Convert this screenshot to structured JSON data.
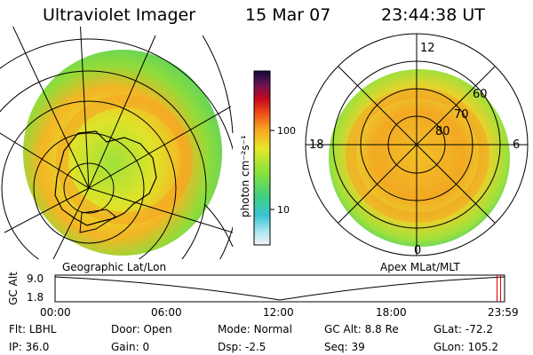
{
  "header": {
    "instrument": "Ultraviolet Imager",
    "date": "15 Mar 07",
    "time": "23:44:38 UT"
  },
  "left_panel": {
    "label": "Geographic Lat/Lon"
  },
  "right_panel": {
    "label": "Apex MLat/MLT",
    "mlt_labels": {
      "top": "12",
      "left": "18",
      "right": "6",
      "bottom": "0"
    },
    "lat_labels": [
      "60",
      "70",
      "80"
    ]
  },
  "colorbar": {
    "unit": "photon cm⁻²s⁻¹",
    "ticks": [
      "100",
      "10"
    ]
  },
  "altitude_plot": {
    "axis_title": "GC Alt",
    "y_ticks": [
      "9.0",
      "1.8"
    ],
    "x_ticks": [
      "00:00",
      "06:00",
      "12:00",
      "18:00",
      "23:59"
    ],
    "min_hour": 12,
    "current_hour": 23.74
  },
  "info": {
    "filter_label": "Flt:",
    "filter": "LBHL",
    "ip_label": "IP:",
    "ip": "36.0",
    "door_label": "Door:",
    "door": "Open",
    "gain_label": "Gain:",
    "gain": "0",
    "mode_label": "Mode:",
    "mode": "Normal",
    "dsp_label": "Dsp:",
    "dsp": "-2.5",
    "gcalt_label": "GC Alt:",
    "gcalt": "8.8 Re",
    "seq_label": "Seq:",
    "seq": "39",
    "glat_label": "GLat:",
    "glat": "-72.2",
    "glon_label": "GLon:",
    "glon": "105.2"
  }
}
